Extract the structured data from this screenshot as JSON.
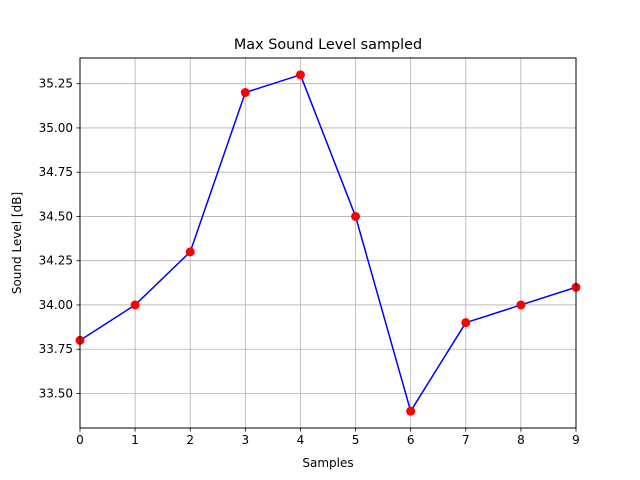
{
  "chart_data": {
    "type": "line",
    "title": "Max Sound Level sampled",
    "xlabel": "Samples",
    "ylabel": "Sound Level [dB]",
    "x": [
      0,
      1,
      2,
      3,
      4,
      5,
      6,
      7,
      8,
      9
    ],
    "series": [
      {
        "values": [
          33.8,
          34.0,
          34.3,
          35.2,
          35.3,
          34.5,
          33.4,
          33.9,
          34.0,
          34.1
        ],
        "line_color": "#0000ff",
        "marker_color": "#ff0000"
      }
    ],
    "xlim": [
      0,
      9
    ],
    "ylim": [
      33.305,
      35.395
    ],
    "xticks": [
      0,
      1,
      2,
      3,
      4,
      5,
      6,
      7,
      8,
      9
    ],
    "xtick_labels": [
      "0",
      "1",
      "2",
      "3",
      "4",
      "5",
      "6",
      "7",
      "8",
      "9"
    ],
    "yticks": [
      33.5,
      33.75,
      34.0,
      34.25,
      34.5,
      34.75,
      35.0,
      35.25
    ],
    "ytick_labels": [
      "33.50",
      "33.75",
      "34.00",
      "34.25",
      "34.50",
      "34.75",
      "35.00",
      "35.25"
    ],
    "grid": true,
    "grid_color": "#b0b0b0"
  }
}
